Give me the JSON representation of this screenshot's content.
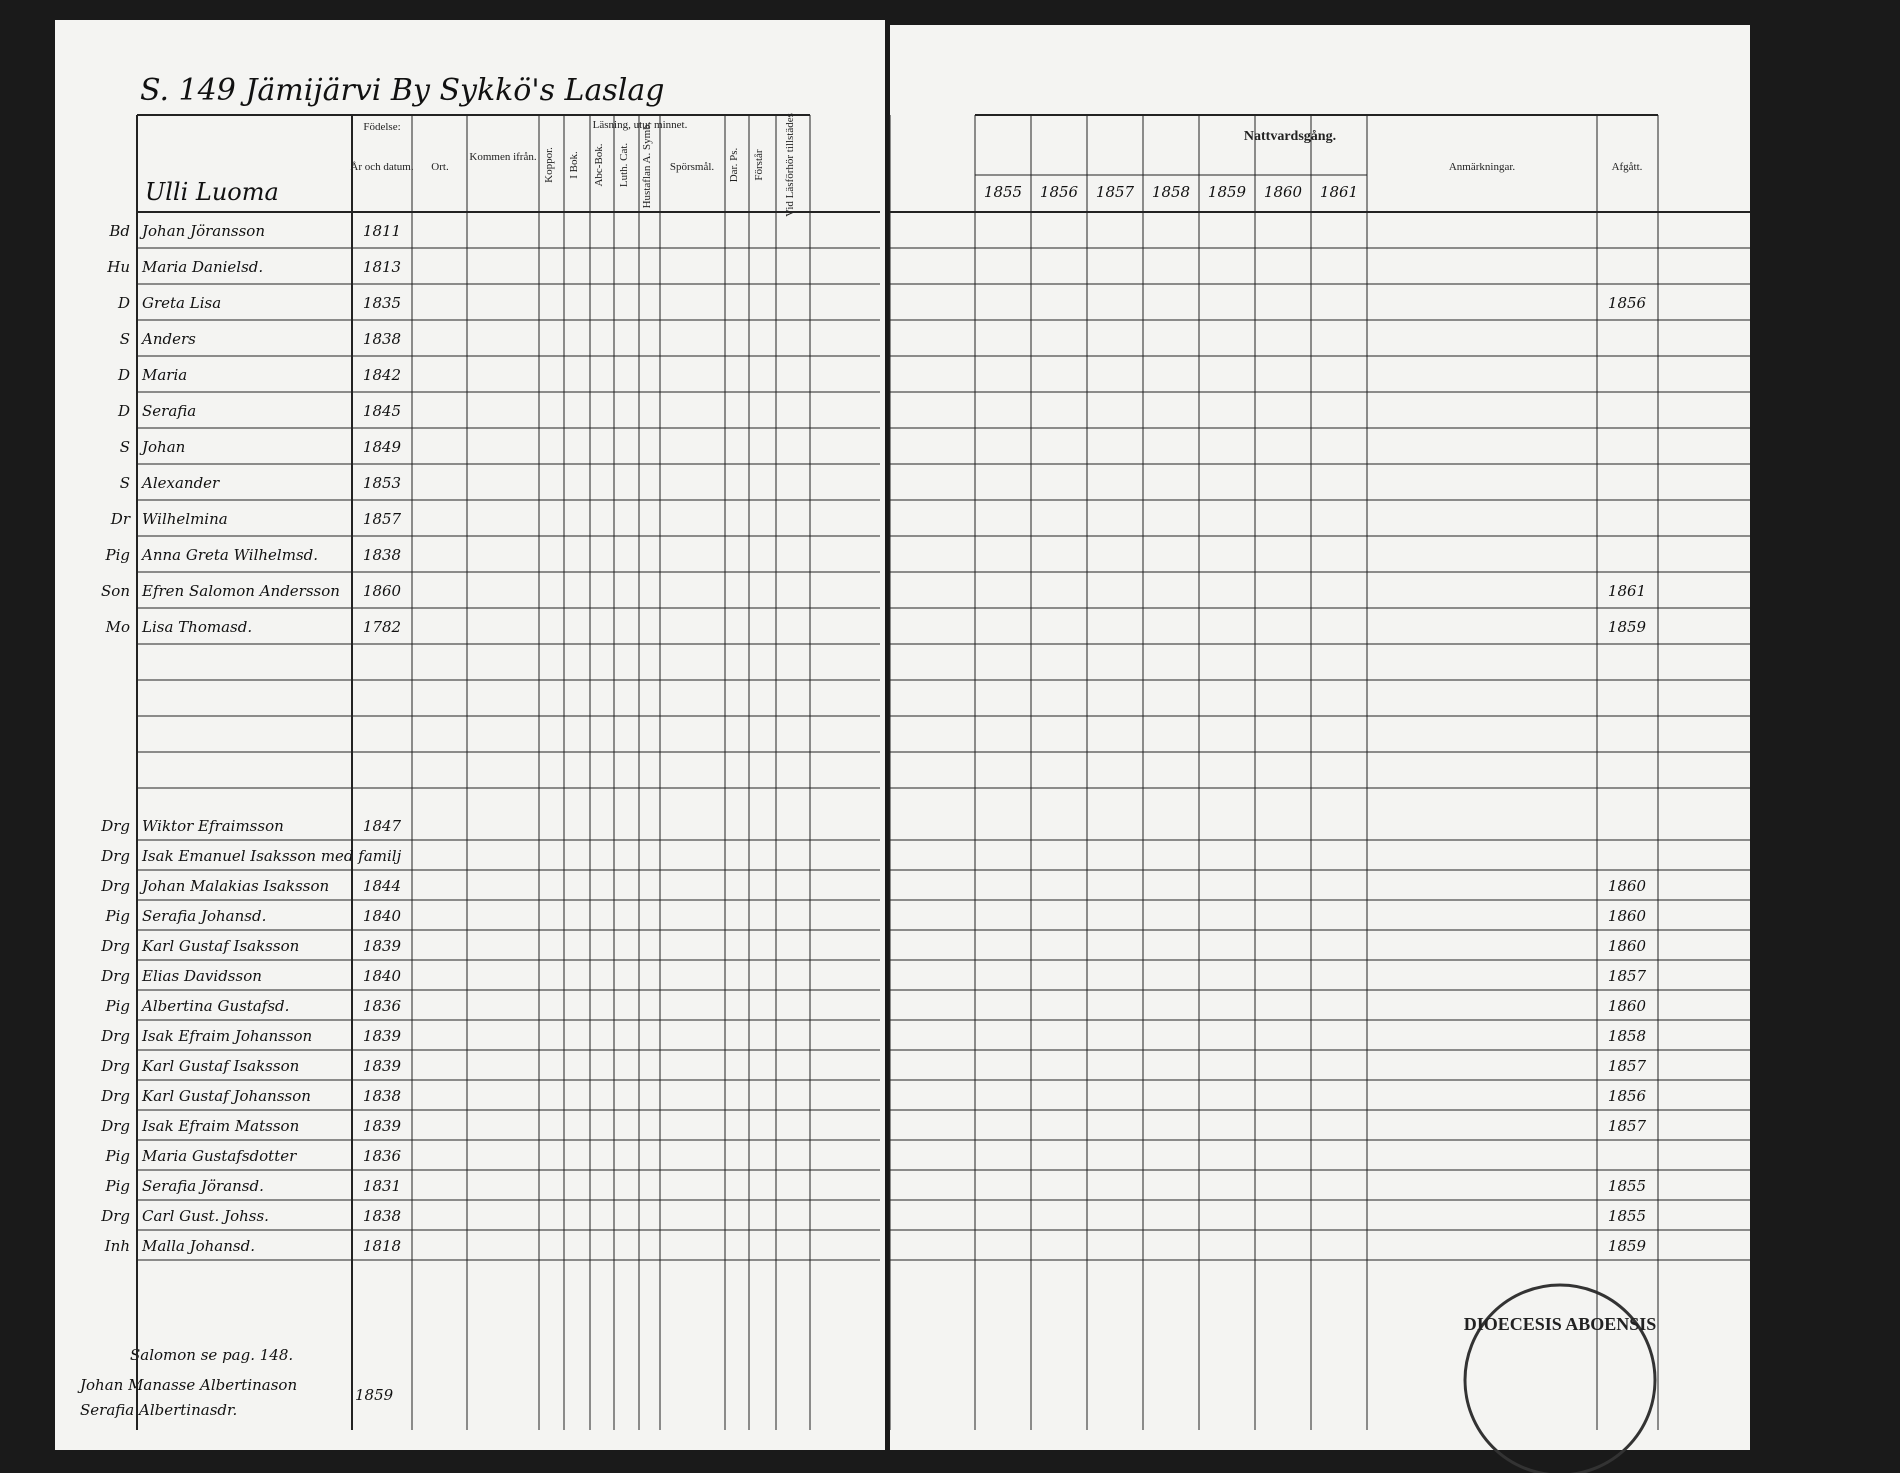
{
  "header": {
    "page_title": "S. 149 Jämijärvi By Sykkö's Laslag",
    "farm": "Ulli Luoma"
  },
  "left_columns": {
    "birth": "Födelse:",
    "birth_date": "År och datum.",
    "birth_place": "Ort.",
    "came_from": "Kommen ifrån.",
    "pox": "Koppor.",
    "reading": "Läsning, utur minnet.",
    "in_book": "I Bok.",
    "abc": "Abc-Bok.",
    "luth": "Luth. Cat.",
    "hustafl": "Hustaflan A. Symb.",
    "questions": "Spörsmål.",
    "dar": "Dar. Ps.",
    "understands": "Förstår",
    "present": "Vid Läsförhör tillstädes"
  },
  "right_columns": {
    "communion": "Nattvardsgång.",
    "years": [
      "1855",
      "1856",
      "1857",
      "1858",
      "1859",
      "1860",
      "1861"
    ],
    "remarks": "Anmärkningar.",
    "departed": "Afgått."
  },
  "rows": [
    {
      "role": "Bd",
      "name": "Johan Jöransson",
      "born": "1811",
      "departed": ""
    },
    {
      "role": "Hu",
      "name": "Maria Danielsd.",
      "born": "1813",
      "departed": ""
    },
    {
      "role": "D",
      "name": "Greta Lisa",
      "born": "1835",
      "departed": "1856"
    },
    {
      "role": "S",
      "name": "Anders",
      "born": "1838",
      "departed": ""
    },
    {
      "role": "D",
      "name": "Maria",
      "born": "1842",
      "departed": ""
    },
    {
      "role": "D",
      "name": "Serafia",
      "born": "1845",
      "departed": ""
    },
    {
      "role": "S",
      "name": "Johan",
      "born": "1849",
      "departed": ""
    },
    {
      "role": "S",
      "name": "Alexander",
      "born": "1853",
      "departed": ""
    },
    {
      "role": "Dr",
      "name": "Wilhelmina",
      "born": "1857",
      "departed": ""
    },
    {
      "role": "Pig",
      "name": "Anna Greta Wilhelmsd.",
      "born": "1838",
      "departed": ""
    },
    {
      "role": "Son",
      "name": "Efren Salomon Andersson",
      "born": "1860",
      "departed": "1861"
    },
    {
      "role": "Mo",
      "name": "Lisa Thomasd.",
      "born": "1782",
      "departed": "1859"
    }
  ],
  "rows2": [
    {
      "role": "Drg",
      "name": "Wiktor Efraimsson",
      "born": "1847",
      "departed": ""
    },
    {
      "role": "Drg",
      "name": "Isak Emanuel Isaksson med familj",
      "born": "",
      "departed": ""
    },
    {
      "role": "Drg",
      "name": "Johan Malakias Isaksson",
      "born": "1844",
      "departed": "1860"
    },
    {
      "role": "Pig",
      "name": "Serafia Johansd.",
      "born": "1840",
      "departed": "1860"
    },
    {
      "role": "Drg",
      "name": "Karl Gustaf Isaksson",
      "born": "1839",
      "departed": "1860"
    },
    {
      "role": "Drg",
      "name": "Elias Davidsson",
      "born": "1840",
      "departed": "1857"
    },
    {
      "role": "Pig",
      "name": "Albertina Gustafsd.",
      "born": "1836",
      "departed": "1860"
    },
    {
      "role": "Drg",
      "name": "Isak Efraim Johansson",
      "born": "1839",
      "departed": "1858"
    },
    {
      "role": "Drg",
      "name": "Karl Gustaf Isaksson",
      "born": "1839",
      "departed": "1857"
    },
    {
      "role": "Drg",
      "name": "Karl Gustaf Johansson",
      "born": "1838",
      "departed": "1856"
    },
    {
      "role": "Drg",
      "name": "Isak Efraim Matsson",
      "born": "1839",
      "departed": "1857"
    },
    {
      "role": "Pig",
      "name": "Maria Gustafsdotter",
      "born": "1836",
      "departed": ""
    },
    {
      "role": "Pig",
      "name": "Serafia Jöransd.",
      "born": "1831",
      "departed": "1855"
    },
    {
      "role": "Drg",
      "name": "Carl Gust. Johss.",
      "born": "1838",
      "departed": "1855"
    },
    {
      "role": "Inh",
      "name": "Malla Johansd.",
      "born": "1818",
      "departed": "1859"
    }
  ],
  "footer": {
    "note": "Salomon se pag. 148.",
    "child1": "Johan Manasse Albertinason",
    "child2": "Serafia Albertinasdr.",
    "child2_born": "1859"
  },
  "stamp": "DIOECESIS ABOENSIS"
}
